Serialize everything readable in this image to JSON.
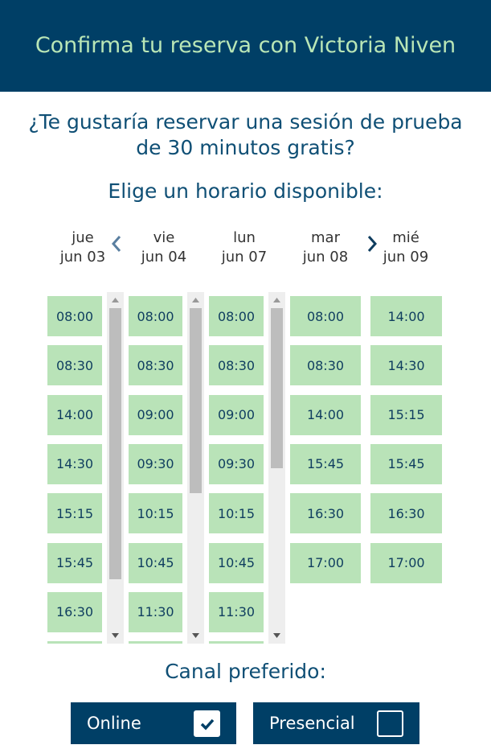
{
  "header": {
    "title": "Confirma tu reserva con Victoria Niven"
  },
  "question": "¿Te gustaría reservar una sesión de prueba de 30 minutos gratis?",
  "subtitle": "Elige un horario disponible:",
  "days": [
    {
      "weekday": "jue",
      "date": "jun 03",
      "slots": [
        "08:00",
        "08:30",
        "14:00",
        "14:30",
        "15:15",
        "15:45",
        "16:30"
      ],
      "scrollable": true,
      "scroll_fraction": 0.85
    },
    {
      "weekday": "vie",
      "date": "jun 04",
      "slots": [
        "08:00",
        "08:30",
        "09:00",
        "09:30",
        "10:15",
        "10:45",
        "11:30"
      ],
      "scrollable": true,
      "scroll_fraction": 0.58
    },
    {
      "weekday": "lun",
      "date": "jun 07",
      "slots": [
        "08:00",
        "08:30",
        "09:00",
        "09:30",
        "10:15",
        "10:45",
        "11:30"
      ],
      "scrollable": true,
      "scroll_fraction": 0.5
    },
    {
      "weekday": "mar",
      "date": "jun 08",
      "slots": [
        "08:00",
        "08:30",
        "14:00",
        "15:45",
        "16:30",
        "17:00"
      ],
      "scrollable": false
    },
    {
      "weekday": "mié",
      "date": "jun 09",
      "slots": [
        "14:00",
        "14:30",
        "15:15",
        "15:45",
        "16:30",
        "17:00"
      ],
      "scrollable": false
    }
  ],
  "nav": {
    "prev_icon": "chevron-left-icon",
    "next_icon": "chevron-right-icon"
  },
  "canal": {
    "title": "Canal preferido:",
    "options": [
      {
        "label": "Online",
        "checked": true
      },
      {
        "label": "Presencial",
        "checked": false
      }
    ]
  },
  "colors": {
    "header_bg": "#003f66",
    "header_text": "#b9e6b6",
    "slot_bg": "#b9e3b8",
    "text": "#0f4f75"
  }
}
